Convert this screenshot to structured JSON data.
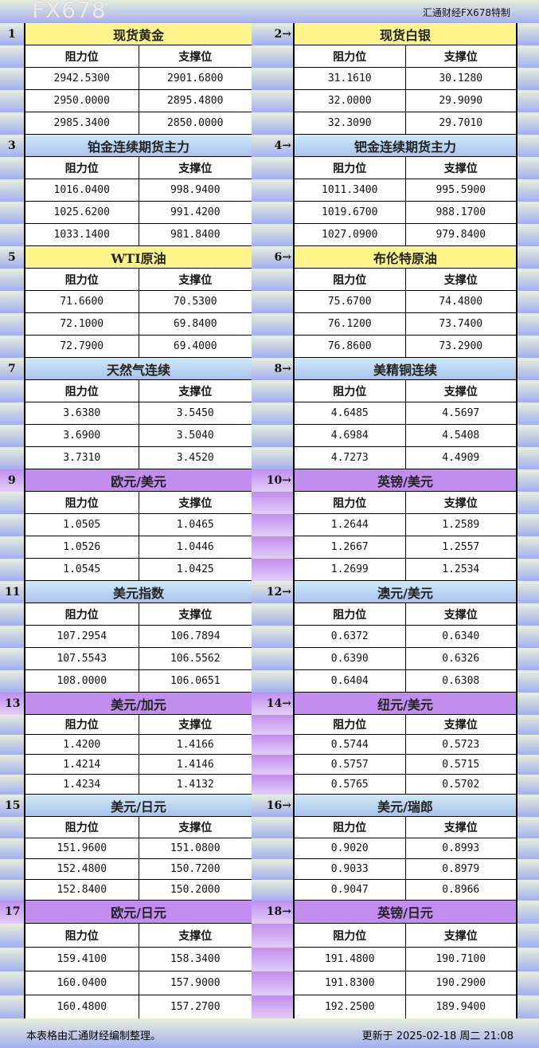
{
  "header": {
    "title": "汇通财经FX678特制"
  },
  "column_headers": {
    "resistance": "阻力位",
    "support": "支撑位"
  },
  "theme_colors": {
    "yellow": "#fff58a",
    "blue": "#b8d8f2",
    "purple": "#c18ef0"
  },
  "instruments": [
    {
      "index": "1",
      "arrow": false,
      "name": "现货黄金",
      "theme": "yellow",
      "resistance": [
        "2942.5300",
        "2950.0000",
        "2985.3400"
      ],
      "support": [
        "2901.6800",
        "2895.4800",
        "2850.0000"
      ]
    },
    {
      "index": "2",
      "arrow": true,
      "name": "现货白银",
      "theme": "yellow",
      "resistance": [
        "31.1610",
        "32.0000",
        "32.3090"
      ],
      "support": [
        "30.1280",
        "29.9090",
        "29.7010"
      ]
    },
    {
      "index": "3",
      "arrow": false,
      "name": "铂金连续期货主力",
      "theme": "blue",
      "resistance": [
        "1016.0400",
        "1025.6200",
        "1033.1400"
      ],
      "support": [
        "998.9400",
        "991.4200",
        "981.8400"
      ]
    },
    {
      "index": "4",
      "arrow": true,
      "name": "钯金连续期货主力",
      "theme": "blue",
      "resistance": [
        "1011.3400",
        "1019.6700",
        "1027.0900"
      ],
      "support": [
        "995.5900",
        "988.1700",
        "979.8400"
      ]
    },
    {
      "index": "5",
      "arrow": false,
      "name": "WTI原油",
      "theme": "yellow",
      "resistance": [
        "71.6600",
        "72.1000",
        "72.7900"
      ],
      "support": [
        "70.5300",
        "69.8400",
        "69.4000"
      ]
    },
    {
      "index": "6",
      "arrow": true,
      "name": "布伦特原油",
      "theme": "yellow",
      "resistance": [
        "75.6700",
        "76.1200",
        "76.8600"
      ],
      "support": [
        "74.4800",
        "73.7400",
        "73.2900"
      ]
    },
    {
      "index": "7",
      "arrow": false,
      "name": "天然气连续",
      "theme": "blue",
      "resistance": [
        "3.6380",
        "3.6900",
        "3.7310"
      ],
      "support": [
        "3.5450",
        "3.5040",
        "3.4520"
      ]
    },
    {
      "index": "8",
      "arrow": true,
      "name": "美精铜连续",
      "theme": "blue",
      "resistance": [
        "4.6485",
        "4.6984",
        "4.7273"
      ],
      "support": [
        "4.5697",
        "4.5408",
        "4.4909"
      ]
    },
    {
      "index": "9",
      "arrow": false,
      "name": "欧元/美元",
      "theme": "purple",
      "resistance": [
        "1.0505",
        "1.0526",
        "1.0545"
      ],
      "support": [
        "1.0465",
        "1.0446",
        "1.0425"
      ]
    },
    {
      "index": "10",
      "arrow": true,
      "name": "英镑/美元",
      "theme": "purple",
      "resistance": [
        "1.2644",
        "1.2667",
        "1.2699"
      ],
      "support": [
        "1.2589",
        "1.2557",
        "1.2534"
      ]
    },
    {
      "index": "11",
      "arrow": false,
      "name": "美元指数",
      "theme": "blue",
      "resistance": [
        "107.2954",
        "107.5543",
        "108.0000"
      ],
      "support": [
        "106.7894",
        "106.5562",
        "106.0651"
      ]
    },
    {
      "index": "12",
      "arrow": true,
      "name": "澳元/美元",
      "theme": "blue",
      "resistance": [
        "0.6372",
        "0.6390",
        "0.6404"
      ],
      "support": [
        "0.6340",
        "0.6326",
        "0.6308"
      ]
    },
    {
      "index": "13",
      "arrow": false,
      "name": "美元/加元",
      "theme": "purple",
      "resistance": [
        "1.4200",
        "1.4214",
        "1.4234"
      ],
      "support": [
        "1.4166",
        "1.4146",
        "1.4132"
      ]
    },
    {
      "index": "14",
      "arrow": true,
      "name": "纽元/美元",
      "theme": "purple",
      "resistance": [
        "0.5744",
        "0.5757",
        "0.5765"
      ],
      "support": [
        "0.5723",
        "0.5715",
        "0.5702"
      ]
    },
    {
      "index": "15",
      "arrow": false,
      "name": "美元/日元",
      "theme": "blue",
      "resistance": [
        "151.9600",
        "152.4800",
        "152.8400"
      ],
      "support": [
        "151.0800",
        "150.7200",
        "150.2000"
      ]
    },
    {
      "index": "16",
      "arrow": true,
      "name": "美元/瑞郎",
      "theme": "blue",
      "resistance": [
        "0.9020",
        "0.9033",
        "0.9047"
      ],
      "support": [
        "0.8993",
        "0.8979",
        "0.8966"
      ]
    },
    {
      "index": "17",
      "arrow": false,
      "name": "欧元/日元",
      "theme": "purple",
      "resistance": [
        "159.4100",
        "160.0400",
        "160.4800"
      ],
      "support": [
        "158.3400",
        "157.9000",
        "157.2700"
      ]
    },
    {
      "index": "18",
      "arrow": true,
      "name": "英镑/日元",
      "theme": "purple",
      "resistance": [
        "191.4800",
        "191.8300",
        "192.2500"
      ],
      "support": [
        "190.7100",
        "190.2900",
        "189.9400"
      ]
    }
  ],
  "footer": {
    "note": "本表格由汇通财经编制整理。",
    "updated": "更新于 2025-02-18 周二 21:08"
  },
  "watermark": "FX678"
}
